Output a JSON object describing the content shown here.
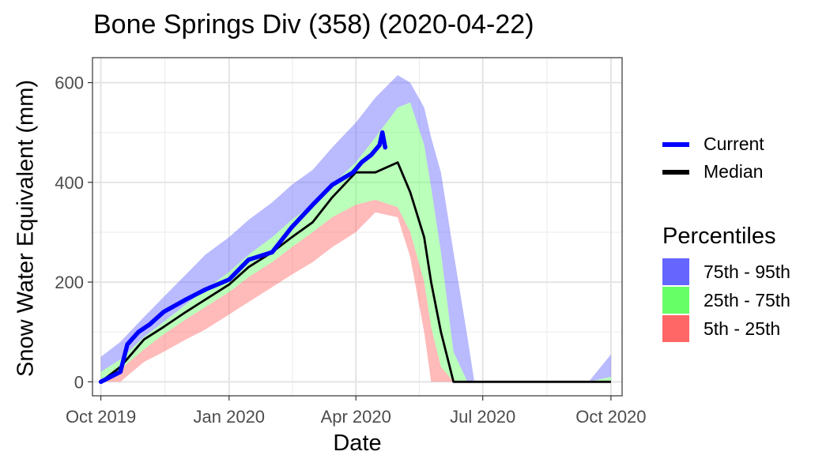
{
  "title": "Bone Springs Div (358) (2020-04-22)",
  "chart_data": {
    "type": "area",
    "xlabel": "Date",
    "ylabel": "Snow Water Equivalent (mm)",
    "x_tick_labels": [
      "Oct 2019",
      "Jan 2020",
      "Apr 2020",
      "Jul 2020",
      "Oct 2020"
    ],
    "x_ticks": [
      "2019-10-01",
      "2020-01-01",
      "2020-04-01",
      "2020-07-01",
      "2020-10-01"
    ],
    "x_range": [
      "2019-09-25",
      "2020-10-09"
    ],
    "y_ticks": [
      0,
      200,
      400,
      600
    ],
    "y_range": [
      -28,
      650
    ],
    "grid": true,
    "legend_position": "right",
    "lines_legend": [
      {
        "name": "Current",
        "color": "#0000ff"
      },
      {
        "name": "Median",
        "color": "#000000"
      }
    ],
    "percentiles_title": "Percentiles",
    "bands_legend": [
      {
        "name": "75th - 95th",
        "color": "#6666ff"
      },
      {
        "name": "25th - 75th",
        "color": "#66ff66"
      },
      {
        "name": "5th - 25th",
        "color": "#ff6666"
      }
    ],
    "dates": [
      "2019-10-01",
      "2019-10-15",
      "2019-11-01",
      "2019-11-15",
      "2019-12-01",
      "2019-12-15",
      "2020-01-01",
      "2020-01-15",
      "2020-02-01",
      "2020-02-15",
      "2020-03-01",
      "2020-03-15",
      "2020-04-01",
      "2020-04-15",
      "2020-05-01",
      "2020-05-10",
      "2020-05-20",
      "2020-05-25",
      "2020-06-01",
      "2020-06-10",
      "2020-06-20",
      "2020-06-25",
      "2020-07-01",
      "2020-09-15",
      "2020-10-01"
    ],
    "p95": [
      50,
      80,
      130,
      170,
      215,
      255,
      290,
      325,
      360,
      395,
      425,
      470,
      520,
      570,
      615,
      600,
      550,
      490,
      420,
      260,
      90,
      0,
      0,
      0,
      55
    ],
    "p75": [
      20,
      45,
      90,
      120,
      155,
      185,
      220,
      255,
      290,
      325,
      355,
      395,
      440,
      490,
      550,
      560,
      475,
      390,
      260,
      60,
      0,
      0,
      0,
      0,
      10
    ],
    "p25": [
      5,
      25,
      65,
      95,
      125,
      150,
      180,
      210,
      240,
      270,
      300,
      330,
      355,
      365,
      350,
      300,
      200,
      110,
      30,
      0,
      0,
      0,
      0,
      0,
      0
    ],
    "p5": [
      0,
      0,
      40,
      60,
      85,
      105,
      135,
      160,
      190,
      215,
      240,
      270,
      300,
      340,
      330,
      250,
      100,
      0,
      0,
      0,
      0,
      0,
      0,
      0,
      0
    ],
    "median": [
      0,
      30,
      85,
      110,
      140,
      165,
      195,
      230,
      260,
      290,
      320,
      370,
      420,
      420,
      440,
      380,
      290,
      200,
      100,
      0,
      0,
      0,
      0,
      0,
      0
    ],
    "current_dates": [
      "2019-10-01",
      "2019-10-08",
      "2019-10-15",
      "2019-10-20",
      "2019-10-28",
      "2019-11-05",
      "2019-11-15",
      "2019-12-01",
      "2019-12-15",
      "2020-01-01",
      "2020-01-15",
      "2020-02-01",
      "2020-02-15",
      "2020-03-01",
      "2020-03-15",
      "2020-03-30",
      "2020-04-05",
      "2020-04-12",
      "2020-04-18",
      "2020-04-20",
      "2020-04-22"
    ],
    "current": [
      0,
      10,
      20,
      75,
      100,
      115,
      140,
      165,
      185,
      205,
      245,
      260,
      310,
      355,
      395,
      420,
      440,
      455,
      475,
      500,
      470
    ]
  }
}
